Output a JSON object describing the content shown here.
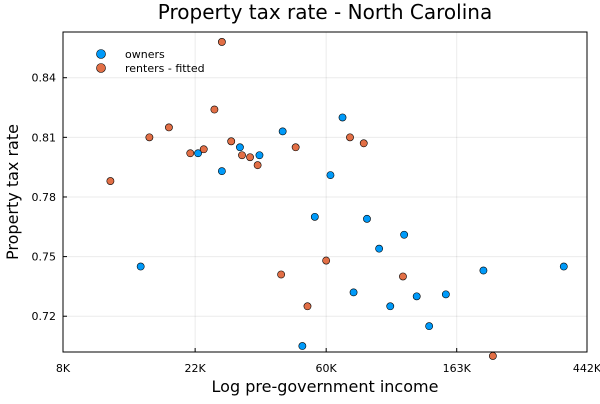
{
  "chart_data": {
    "type": "scatter",
    "title": "Property tax rate - North Carolina",
    "xlabel": "Log pre-government income",
    "ylabel": "Property tax rate",
    "x_scale": "log",
    "xlim": [
      8000,
      442000
    ],
    "ylim": [
      0.702,
      0.863
    ],
    "x_ticks": [
      {
        "value": 8000,
        "label": "8K"
      },
      {
        "value": 22000,
        "label": "22K"
      },
      {
        "value": 60000,
        "label": "60K"
      },
      {
        "value": 163000,
        "label": "163K"
      },
      {
        "value": 442000,
        "label": "442K"
      }
    ],
    "y_ticks": [
      {
        "value": 0.72,
        "label": "0.72"
      },
      {
        "value": 0.75,
        "label": "0.75"
      },
      {
        "value": 0.78,
        "label": "0.78"
      },
      {
        "value": 0.81,
        "label": "0.81"
      },
      {
        "value": 0.84,
        "label": "0.84"
      }
    ],
    "grid": true,
    "legend_position": "top-left",
    "series": [
      {
        "name": "owners",
        "color": "#009af9",
        "points": [
          {
            "x": 14500,
            "y": 0.745
          },
          {
            "x": 22500,
            "y": 0.802
          },
          {
            "x": 27000,
            "y": 0.793
          },
          {
            "x": 31000,
            "y": 0.805
          },
          {
            "x": 36000,
            "y": 0.801
          },
          {
            "x": 43000,
            "y": 0.813
          },
          {
            "x": 50000,
            "y": 0.705
          },
          {
            "x": 55000,
            "y": 0.77
          },
          {
            "x": 62000,
            "y": 0.791
          },
          {
            "x": 68000,
            "y": 0.82
          },
          {
            "x": 74000,
            "y": 0.732
          },
          {
            "x": 82000,
            "y": 0.769
          },
          {
            "x": 90000,
            "y": 0.754
          },
          {
            "x": 98000,
            "y": 0.725
          },
          {
            "x": 109000,
            "y": 0.761
          },
          {
            "x": 120000,
            "y": 0.73
          },
          {
            "x": 132000,
            "y": 0.715
          },
          {
            "x": 150000,
            "y": 0.731
          },
          {
            "x": 200000,
            "y": 0.743
          },
          {
            "x": 370000,
            "y": 0.745
          }
        ]
      },
      {
        "name": "renters - fitted",
        "color": "#e26f46",
        "points": [
          {
            "x": 11500,
            "y": 0.788
          },
          {
            "x": 15500,
            "y": 0.81
          },
          {
            "x": 18000,
            "y": 0.815
          },
          {
            "x": 21200,
            "y": 0.802
          },
          {
            "x": 23500,
            "y": 0.804
          },
          {
            "x": 25500,
            "y": 0.824
          },
          {
            "x": 27000,
            "y": 0.858
          },
          {
            "x": 29000,
            "y": 0.808
          },
          {
            "x": 31500,
            "y": 0.801
          },
          {
            "x": 33500,
            "y": 0.8
          },
          {
            "x": 35500,
            "y": 0.796
          },
          {
            "x": 42500,
            "y": 0.741
          },
          {
            "x": 47500,
            "y": 0.805
          },
          {
            "x": 52000,
            "y": 0.725
          },
          {
            "x": 60000,
            "y": 0.748
          },
          {
            "x": 72000,
            "y": 0.81
          },
          {
            "x": 80000,
            "y": 0.807
          },
          {
            "x": 108000,
            "y": 0.74
          },
          {
            "x": 215000,
            "y": 0.7
          }
        ]
      }
    ]
  }
}
